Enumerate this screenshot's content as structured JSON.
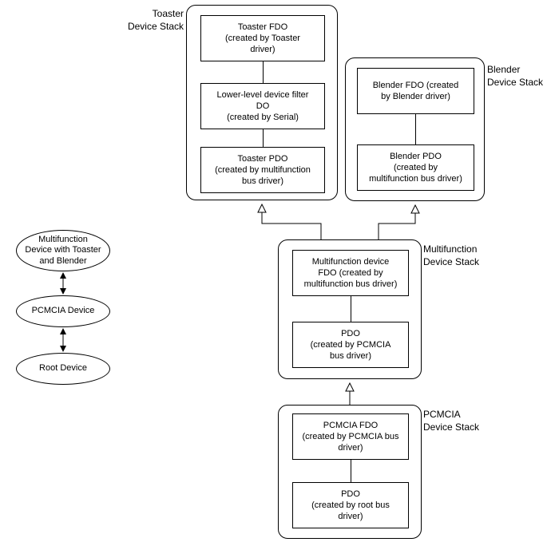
{
  "type": "flowchart",
  "background_color": "#ffffff",
  "border_color": "#000000",
  "font_family": "Arial",
  "label_fontsize": 12,
  "box_fontsize": 11,
  "labels": {
    "toaster_stack": "Toaster\nDevice Stack",
    "blender_stack": "Blender\nDevice Stack",
    "multifunction_stack": "Multifunction\nDevice Stack",
    "pcmcia_stack": "PCMCIA\nDevice Stack"
  },
  "stacks": {
    "toaster": {
      "boxes": {
        "fdo": "Toaster FDO\n(created by Toaster\ndriver)",
        "filter": "Lower-level device filter\nDO\n(created by Serial)",
        "pdo": "Toaster PDO\n(created by multifunction\nbus driver)"
      }
    },
    "blender": {
      "boxes": {
        "fdo": "Blender FDO (created\nby Blender driver)",
        "pdo": "Blender PDO\n(created by\nmultifunction bus driver)"
      }
    },
    "multifunction": {
      "boxes": {
        "fdo": "Multifunction device\nFDO (created by\nmultifunction bus driver)",
        "pdo": "PDO\n(created by PCMCIA\nbus driver)"
      }
    },
    "pcmcia": {
      "boxes": {
        "fdo": "PCMCIA FDO\n(created by PCMCIA bus\ndriver)",
        "pdo": "PDO\n(created by root bus\ndriver)"
      }
    }
  },
  "tree": {
    "top": "Multifunction\nDevice with Toaster\nand Blender",
    "middle": "PCMCIA Device",
    "bottom": "Root Device"
  }
}
